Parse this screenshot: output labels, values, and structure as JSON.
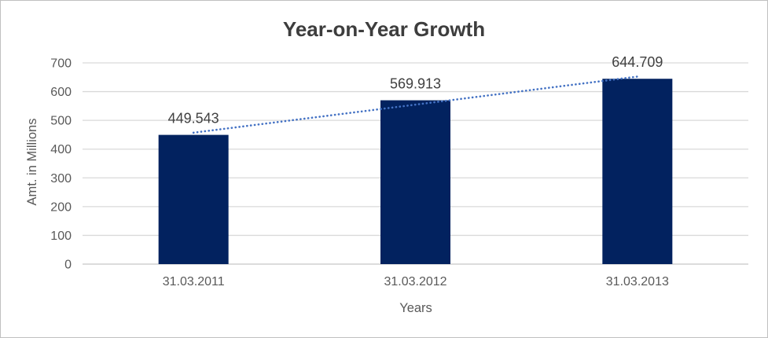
{
  "window": {
    "background": "#ffffff",
    "border_color": "#c0c0c0"
  },
  "chart_data": {
    "type": "bar",
    "title": "Year-on-Year Growth",
    "xlabel": "Years",
    "ylabel": "Amt. in Millions",
    "categories": [
      "31.03.2011",
      "31.03.2012",
      "31.03.2013"
    ],
    "values": [
      449.543,
      569.913,
      644.709
    ],
    "data_labels": [
      "449.543",
      "569.913",
      "644.709"
    ],
    "ylim": [
      0,
      700
    ],
    "ytick_step": 100,
    "ytick_labels": [
      "0",
      "100",
      "200",
      "300",
      "400",
      "500",
      "600",
      "700"
    ],
    "grid": true,
    "legend_position": "none",
    "trendline": {
      "type": "linear",
      "style": "dotted",
      "color": "#4472C4",
      "endpoint_values": [
        457.139,
        652.305
      ]
    },
    "colors": {
      "bar": "#02225F",
      "gridline": "#D9D9D9",
      "axis_line": "#C6C6C6",
      "title_text": "#3D3D3D",
      "axis_text": "#595959",
      "data_label_text": "#404040"
    }
  }
}
